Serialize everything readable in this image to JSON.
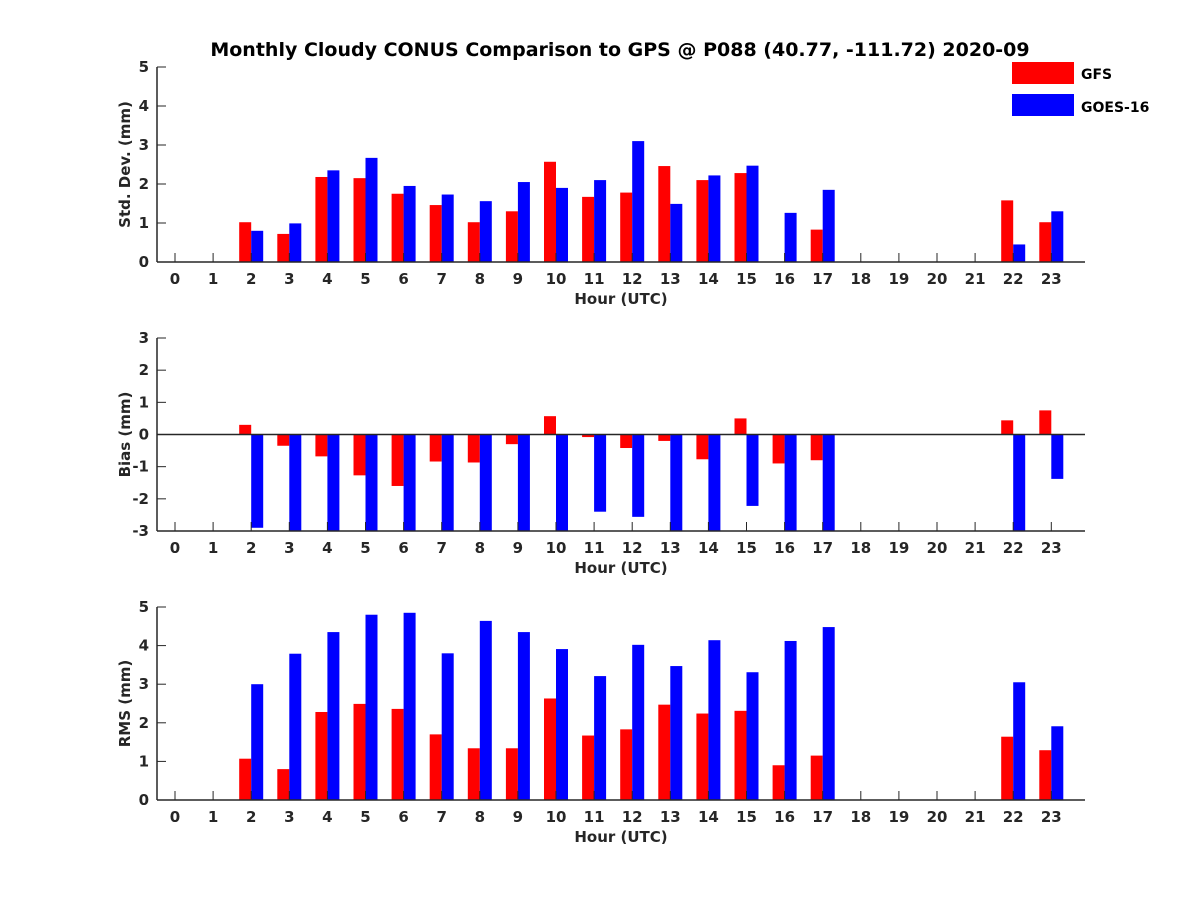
{
  "title": "Monthly Cloudy CONUS Comparison to GPS @ P088 (40.77, -111.72) 2020-09",
  "legend": {
    "placement": "top-right",
    "entries": [
      {
        "label": "GFS",
        "color": "#ff0000"
      },
      {
        "label": "GOES-16",
        "color": "#0000ff"
      }
    ]
  },
  "chart_data": [
    {
      "type": "bar",
      "xlabel": "Hour (UTC)",
      "ylabel": "Std. Dev. (mm)",
      "ylim": [
        0,
        5
      ],
      "yticks": [
        0,
        1,
        2,
        3,
        4,
        5
      ],
      "categories": [
        "0",
        "1",
        "2",
        "3",
        "4",
        "5",
        "6",
        "7",
        "8",
        "9",
        "10",
        "11",
        "12",
        "13",
        "14",
        "15",
        "16",
        "17",
        "18",
        "19",
        "20",
        "21",
        "22",
        "23"
      ],
      "zero_line": false,
      "series": [
        {
          "name": "GFS",
          "color": "#ff0000",
          "values": [
            null,
            null,
            1.02,
            0.72,
            2.18,
            2.15,
            1.75,
            1.46,
            1.02,
            1.3,
            2.57,
            1.67,
            1.78,
            2.46,
            2.1,
            2.28,
            null,
            0.83,
            null,
            null,
            null,
            null,
            1.58,
            1.02
          ]
        },
        {
          "name": "GOES-16",
          "color": "#0000ff",
          "values": [
            null,
            null,
            0.8,
            0.99,
            2.35,
            2.67,
            1.95,
            1.73,
            1.56,
            2.05,
            1.9,
            2.1,
            3.1,
            1.49,
            2.22,
            2.47,
            1.26,
            1.85,
            null,
            null,
            null,
            null,
            0.45,
            1.3
          ]
        }
      ]
    },
    {
      "type": "bar",
      "xlabel": "Hour (UTC)",
      "ylabel": "Bias (mm)",
      "ylim": [
        -3,
        3
      ],
      "yticks": [
        -3,
        -2,
        -1,
        0,
        1,
        2,
        3
      ],
      "categories": [
        "0",
        "1",
        "2",
        "3",
        "4",
        "5",
        "6",
        "7",
        "8",
        "9",
        "10",
        "11",
        "12",
        "13",
        "14",
        "15",
        "16",
        "17",
        "18",
        "19",
        "20",
        "21",
        "22",
        "23"
      ],
      "zero_line": true,
      "series": [
        {
          "name": "GFS",
          "color": "#ff0000",
          "values": [
            null,
            null,
            0.3,
            -0.35,
            -0.68,
            -1.27,
            -1.6,
            -0.84,
            -0.87,
            -0.3,
            0.57,
            -0.08,
            -0.42,
            -0.2,
            -0.77,
            0.5,
            -0.9,
            -0.8,
            null,
            null,
            null,
            null,
            0.44,
            0.75
          ]
        },
        {
          "name": "GOES-16",
          "color": "#0000ff",
          "values": [
            null,
            null,
            -2.9,
            -3.0,
            -3.0,
            -3.0,
            -3.0,
            -3.0,
            -3.0,
            -3.0,
            -3.0,
            -2.4,
            -2.56,
            -3.0,
            -3.0,
            -2.22,
            -3.0,
            -3.0,
            null,
            null,
            null,
            null,
            -3.0,
            -1.38
          ]
        }
      ]
    },
    {
      "type": "bar",
      "xlabel": "Hour (UTC)",
      "ylabel": "RMS (mm)",
      "ylim": [
        0,
        5
      ],
      "yticks": [
        0,
        1,
        2,
        3,
        4,
        5
      ],
      "categories": [
        "0",
        "1",
        "2",
        "3",
        "4",
        "5",
        "6",
        "7",
        "8",
        "9",
        "10",
        "11",
        "12",
        "13",
        "14",
        "15",
        "16",
        "17",
        "18",
        "19",
        "20",
        "21",
        "22",
        "23"
      ],
      "zero_line": false,
      "series": [
        {
          "name": "GFS",
          "color": "#ff0000",
          "values": [
            null,
            null,
            1.07,
            0.8,
            2.28,
            2.49,
            2.36,
            1.7,
            1.34,
            1.34,
            2.63,
            1.67,
            1.83,
            2.47,
            2.24,
            2.31,
            0.9,
            1.15,
            null,
            null,
            null,
            null,
            1.64,
            1.29
          ]
        },
        {
          "name": "GOES-16",
          "color": "#0000ff",
          "values": [
            null,
            null,
            3.0,
            3.79,
            4.35,
            4.8,
            4.85,
            3.8,
            4.64,
            4.35,
            3.91,
            3.21,
            4.02,
            3.47,
            4.14,
            3.31,
            4.12,
            4.48,
            null,
            null,
            null,
            null,
            3.05,
            1.91
          ]
        }
      ]
    }
  ]
}
